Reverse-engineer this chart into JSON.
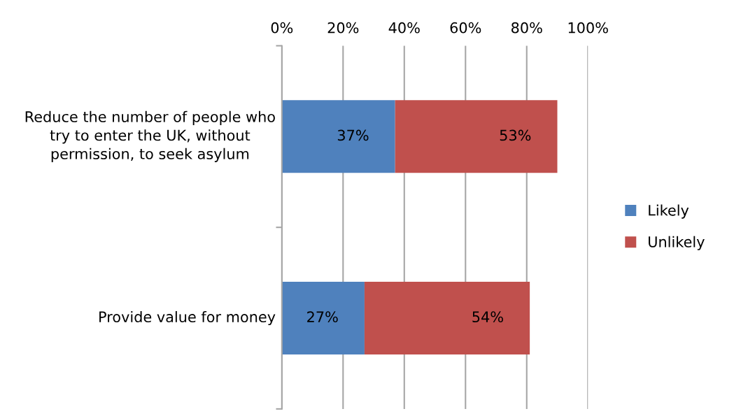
{
  "chart_data": {
    "type": "bar",
    "orientation": "horizontal",
    "stacked": true,
    "categories": [
      "Reduce the number of people who try to enter the UK, without permission, to seek asylum",
      "Provide value for money"
    ],
    "series": [
      {
        "name": "Likely",
        "color": "#4f81bd",
        "values": [
          37,
          27
        ],
        "value_labels": [
          "37%",
          "27%"
        ]
      },
      {
        "name": "Unlikely",
        "color": "#c0504d",
        "values": [
          53,
          54
        ],
        "value_labels": [
          "53%",
          "54%"
        ]
      }
    ],
    "xlim": [
      0,
      100
    ],
    "xticks": [
      {
        "value": 0,
        "label": "0%"
      },
      {
        "value": 20,
        "label": "20%"
      },
      {
        "value": 40,
        "label": "40%"
      },
      {
        "value": 60,
        "label": "60%"
      },
      {
        "value": 80,
        "label": "80%"
      },
      {
        "value": 100,
        "label": "100%"
      }
    ],
    "grid": "x",
    "legend": "right"
  }
}
